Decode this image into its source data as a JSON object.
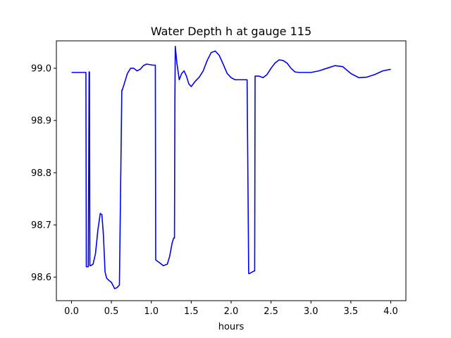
{
  "chart_data": {
    "type": "line",
    "title": "Water Depth h at gauge 115",
    "xlabel": "hours",
    "ylabel": "",
    "xlim": [
      -0.19,
      4.19
    ],
    "ylim": [
      98.555,
      99.0525
    ],
    "xticks": [
      0.0,
      0.5,
      1.0,
      1.5,
      2.0,
      2.5,
      3.0,
      3.5,
      4.0
    ],
    "xtick_labels": [
      "0.0",
      "0.5",
      "1.0",
      "1.5",
      "2.0",
      "2.5",
      "3.0",
      "3.5",
      "4.0"
    ],
    "yticks": [
      98.6,
      98.7,
      98.8,
      98.9,
      99.0
    ],
    "ytick_labels": [
      "98.6",
      "98.7",
      "98.8",
      "98.9",
      "99.0"
    ],
    "grid": false,
    "series": [
      {
        "color": "#0000ff",
        "x": [
          0.0,
          0.18,
          0.185,
          0.21,
          0.22,
          0.225,
          0.23,
          0.235,
          0.24,
          0.27,
          0.3,
          0.33,
          0.36,
          0.38,
          0.4,
          0.42,
          0.44,
          0.46,
          0.5,
          0.54,
          0.57,
          0.6,
          0.63,
          0.635,
          0.66,
          0.7,
          0.74,
          0.78,
          0.82,
          0.86,
          0.9,
          0.94,
          0.98,
          1.02,
          1.05,
          1.055,
          1.1,
          1.15,
          1.2,
          1.23,
          1.26,
          1.28,
          1.29,
          1.295,
          1.3,
          1.32,
          1.35,
          1.38,
          1.41,
          1.44,
          1.47,
          1.5,
          1.55,
          1.6,
          1.65,
          1.7,
          1.75,
          1.8,
          1.85,
          1.9,
          1.95,
          2.0,
          2.05,
          2.1,
          2.15,
          2.2,
          2.22,
          2.225,
          2.23,
          2.29,
          2.295,
          2.3,
          2.35,
          2.4,
          2.45,
          2.5,
          2.55,
          2.6,
          2.65,
          2.7,
          2.75,
          2.8,
          2.85,
          2.9,
          2.95,
          3.0,
          3.1,
          3.2,
          3.3,
          3.4,
          3.5,
          3.6,
          3.7,
          3.8,
          3.9,
          4.0
        ],
        "y": [
          98.992,
          98.992,
          98.62,
          98.62,
          98.993,
          98.993,
          98.622,
          98.622,
          98.622,
          98.625,
          98.645,
          98.69,
          98.722,
          98.72,
          98.68,
          98.61,
          98.598,
          98.595,
          98.59,
          98.578,
          98.58,
          98.585,
          98.958,
          98.958,
          98.97,
          98.99,
          99.0,
          99.0,
          98.995,
          98.998,
          99.005,
          99.008,
          99.007,
          99.006,
          99.006,
          98.633,
          98.628,
          98.622,
          98.625,
          98.64,
          98.665,
          98.675,
          98.675,
          98.94,
          99.042,
          99.01,
          98.978,
          98.99,
          98.995,
          98.985,
          98.97,
          98.965,
          98.975,
          98.983,
          98.995,
          99.015,
          99.03,
          99.033,
          99.025,
          99.008,
          98.99,
          98.982,
          98.978,
          98.978,
          98.978,
          98.978,
          98.607,
          98.607,
          98.607,
          98.612,
          98.612,
          98.985,
          98.985,
          98.982,
          98.988,
          99.0,
          99.01,
          99.016,
          99.015,
          99.01,
          99.0,
          98.993,
          98.992,
          98.992,
          98.992,
          98.992,
          98.995,
          99.0,
          99.005,
          99.003,
          98.99,
          98.982,
          98.983,
          98.988,
          98.995,
          98.998
        ]
      }
    ]
  }
}
